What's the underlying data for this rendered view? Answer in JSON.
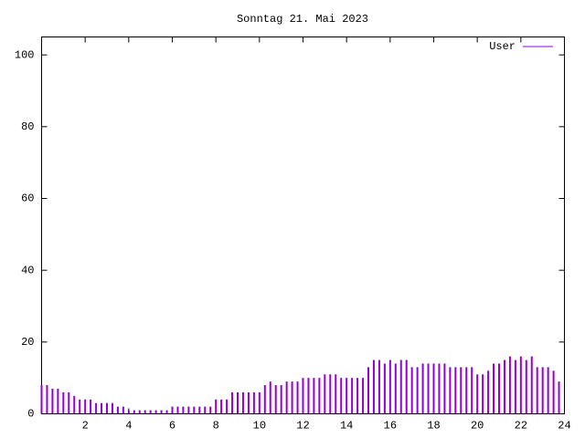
{
  "chart_data": {
    "type": "impulse",
    "title": "Sonntag 21. Mai 2023",
    "x": [
      0,
      0.25,
      0.5,
      0.75,
      1,
      1.25,
      1.5,
      1.75,
      2,
      2.25,
      2.5,
      2.75,
      3,
      3.25,
      3.5,
      3.75,
      4,
      4.25,
      4.5,
      4.75,
      5,
      5.25,
      5.5,
      5.75,
      6,
      6.25,
      6.5,
      6.75,
      7,
      7.25,
      7.5,
      7.75,
      8,
      8.25,
      8.5,
      8.75,
      9,
      9.25,
      9.5,
      9.75,
      10,
      10.25,
      10.5,
      10.75,
      11,
      11.25,
      11.5,
      11.75,
      12,
      12.25,
      12.5,
      12.75,
      13,
      13.25,
      13.5,
      13.75,
      14,
      14.25,
      14.5,
      14.75,
      15,
      15.25,
      15.5,
      15.75,
      16,
      16.25,
      16.5,
      16.75,
      17,
      17.25,
      17.5,
      17.75,
      18,
      18.25,
      18.5,
      18.75,
      19,
      19.25,
      19.5,
      19.75,
      20,
      20.25,
      20.5,
      20.75,
      21,
      21.25,
      21.5,
      21.75,
      22,
      22.25,
      22.5,
      22.75,
      23,
      23.25,
      23.5,
      23.75
    ],
    "series": [
      {
        "name": "User",
        "color": "#9400d3",
        "values": [
          8,
          8,
          7,
          7,
          6,
          6,
          5,
          4,
          4,
          4,
          3,
          3,
          3,
          3,
          2,
          2,
          1,
          1,
          1,
          1,
          1,
          1,
          1,
          1,
          2,
          2,
          2,
          2,
          2,
          2,
          2,
          2,
          4,
          4,
          4,
          6,
          6,
          6,
          6,
          6,
          6,
          8,
          9,
          8,
          8,
          9,
          9,
          9,
          10,
          10,
          10,
          10,
          11,
          11,
          11,
          10,
          10,
          10,
          10,
          10,
          13,
          15,
          15,
          14,
          15,
          14,
          15,
          15,
          13,
          13,
          14,
          14,
          14,
          14,
          14,
          13,
          13,
          13,
          13,
          13,
          11,
          11,
          12,
          14,
          14,
          15,
          16,
          15,
          16,
          15,
          16,
          13,
          13,
          13,
          12,
          9
        ]
      }
    ],
    "xlim": [
      0,
      24
    ],
    "xticks": [
      2,
      4,
      6,
      8,
      10,
      12,
      14,
      16,
      18,
      20,
      22,
      24
    ],
    "ylim": [
      0,
      105
    ],
    "yticks": [
      0,
      20,
      40,
      60,
      80,
      100
    ],
    "legend": "top-right"
  }
}
